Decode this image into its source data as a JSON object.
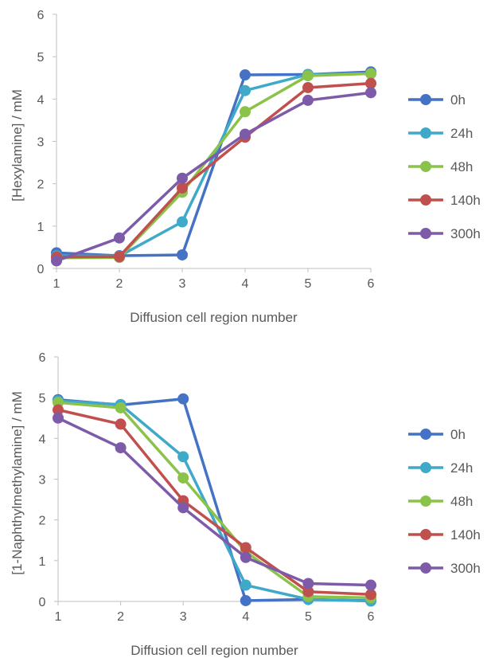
{
  "chart_data": [
    {
      "type": "line",
      "title": "",
      "xlabel": "Diffusion cell region number",
      "ylabel": "[Hexylamine] / mM",
      "x": [
        1,
        2,
        3,
        4,
        5,
        6
      ],
      "ylim": [
        0,
        6
      ],
      "yticks": [
        0,
        1,
        2,
        3,
        4,
        5,
        6
      ],
      "grid": false,
      "legend": "right",
      "series": [
        {
          "name": "0h",
          "color": "#4472C4",
          "values": [
            0.37,
            0.3,
            0.32,
            4.57,
            4.58,
            4.64
          ]
        },
        {
          "name": "24h",
          "color": "#3FA9C9",
          "values": [
            0.3,
            0.29,
            1.1,
            4.2,
            4.58,
            4.6
          ]
        },
        {
          "name": "48h",
          "color": "#8BC34A",
          "values": [
            0.25,
            0.26,
            1.8,
            3.7,
            4.55,
            4.6
          ]
        },
        {
          "name": "140h",
          "color": "#C0504D",
          "values": [
            0.27,
            0.28,
            1.9,
            3.1,
            4.27,
            4.37
          ]
        },
        {
          "name": "300h",
          "color": "#7E5BA8",
          "values": [
            0.18,
            0.72,
            2.13,
            3.17,
            3.97,
            4.15
          ]
        }
      ]
    },
    {
      "type": "line",
      "title": "",
      "xlabel": "Diffusion cell region number",
      "ylabel": "[1-Naphthylmethylamine] / mM",
      "x": [
        1,
        2,
        3,
        4,
        5,
        6
      ],
      "ylim": [
        0,
        6
      ],
      "yticks": [
        0,
        1,
        2,
        3,
        4,
        5,
        6
      ],
      "grid": false,
      "legend": "right",
      "series": [
        {
          "name": "0h",
          "color": "#4472C4",
          "values": [
            4.95,
            4.82,
            4.97,
            0.02,
            0.05,
            0.02
          ]
        },
        {
          "name": "24h",
          "color": "#3FA9C9",
          "values": [
            4.92,
            4.83,
            3.55,
            0.4,
            0.05,
            0.01
          ]
        },
        {
          "name": "48h",
          "color": "#8BC34A",
          "values": [
            4.88,
            4.75,
            3.03,
            1.22,
            0.12,
            0.09
          ]
        },
        {
          "name": "140h",
          "color": "#C0504D",
          "values": [
            4.7,
            4.35,
            2.47,
            1.32,
            0.24,
            0.17
          ]
        },
        {
          "name": "300h",
          "color": "#7E5BA8",
          "values": [
            4.5,
            3.77,
            2.3,
            1.08,
            0.44,
            0.4
          ]
        }
      ]
    }
  ]
}
